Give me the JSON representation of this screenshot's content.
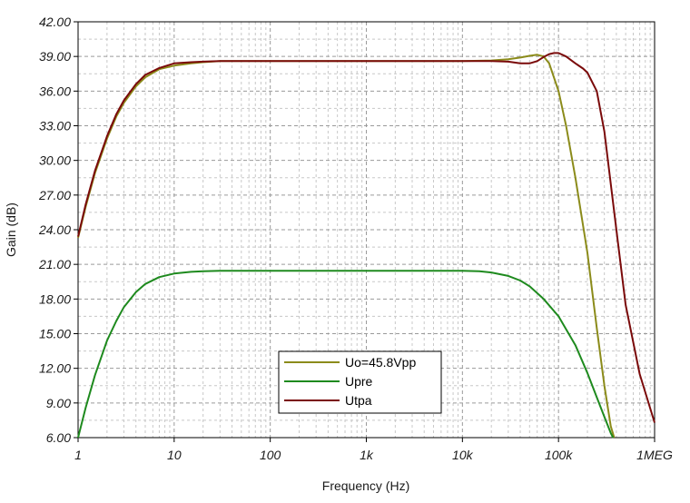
{
  "chart_data": {
    "type": "line",
    "xlabel": "Frequency (Hz)",
    "ylabel": "Gain (dB)",
    "x_scale": "log",
    "xlim": [
      1,
      1000000
    ],
    "ylim": [
      6,
      42
    ],
    "grid": true,
    "legend_position": "bottom-center",
    "x_ticks": [
      {
        "value": 1,
        "label": "1"
      },
      {
        "value": 10,
        "label": "10"
      },
      {
        "value": 100,
        "label": "100"
      },
      {
        "value": 1000,
        "label": "1k"
      },
      {
        "value": 10000,
        "label": "10k"
      },
      {
        "value": 100000,
        "label": "100k"
      },
      {
        "value": 1000000,
        "label": "1MEG"
      }
    ],
    "y_ticks": [
      {
        "value": 6,
        "label": "6.00"
      },
      {
        "value": 9,
        "label": "9.00"
      },
      {
        "value": 12,
        "label": "12.00"
      },
      {
        "value": 15,
        "label": "15.00"
      },
      {
        "value": 18,
        "label": "18.00"
      },
      {
        "value": 21,
        "label": "21.00"
      },
      {
        "value": 24,
        "label": "24.00"
      },
      {
        "value": 27,
        "label": "27.00"
      },
      {
        "value": 30,
        "label": "30.00"
      },
      {
        "value": 33,
        "label": "33.00"
      },
      {
        "value": 36,
        "label": "36.00"
      },
      {
        "value": 39,
        "label": "39.00"
      },
      {
        "value": 42,
        "label": "42.00"
      }
    ],
    "series": [
      {
        "name": "Uo=45.8Vpp",
        "color": "#8b8b1a",
        "x": [
          1,
          1.2,
          1.5,
          2,
          2.5,
          3,
          4,
          5,
          7,
          10,
          15,
          20,
          30,
          50,
          100,
          1000,
          10000,
          20000,
          30000,
          40000,
          50000,
          60000,
          70000,
          80000,
          100000,
          120000,
          150000,
          200000,
          250000,
          300000,
          350000,
          380000
        ],
        "y": [
          23.3,
          26.0,
          28.9,
          31.9,
          33.8,
          35.0,
          36.4,
          37.2,
          37.9,
          38.2,
          38.4,
          38.5,
          38.6,
          38.6,
          38.6,
          38.6,
          38.6,
          38.65,
          38.75,
          38.9,
          39.05,
          39.15,
          39.0,
          38.4,
          36.0,
          33.0,
          28.5,
          22.0,
          15.5,
          10.5,
          7.0,
          5.8
        ]
      },
      {
        "name": "Upre",
        "color": "#1e8a1e",
        "x": [
          1,
          1.2,
          1.5,
          2,
          2.5,
          3,
          4,
          5,
          7,
          10,
          15,
          20,
          30,
          50,
          100,
          1000,
          10000,
          15000,
          20000,
          30000,
          40000,
          50000,
          70000,
          100000,
          150000,
          200000,
          250000,
          300000,
          350000,
          370000
        ],
        "y": [
          6.0,
          8.6,
          11.4,
          14.4,
          16.1,
          17.3,
          18.6,
          19.3,
          19.9,
          20.2,
          20.35,
          20.4,
          20.45,
          20.45,
          20.45,
          20.45,
          20.45,
          20.4,
          20.3,
          20.0,
          19.6,
          19.1,
          18.0,
          16.5,
          14.0,
          11.6,
          9.5,
          7.8,
          6.4,
          5.9
        ]
      },
      {
        "name": "Utpa",
        "color": "#7a0a0a",
        "x": [
          1,
          1.2,
          1.5,
          2,
          2.5,
          3,
          4,
          5,
          7,
          10,
          15,
          20,
          30,
          50,
          100,
          1000,
          10000,
          20000,
          30000,
          40000,
          50000,
          60000,
          70000,
          80000,
          90000,
          100000,
          120000,
          150000,
          180000,
          200000,
          250000,
          300000,
          400000,
          500000,
          700000,
          1000000
        ],
        "y": [
          23.4,
          26.2,
          29.1,
          32.1,
          34.0,
          35.2,
          36.6,
          37.4,
          38.0,
          38.4,
          38.5,
          38.55,
          38.6,
          38.6,
          38.6,
          38.6,
          38.6,
          38.6,
          38.55,
          38.4,
          38.4,
          38.6,
          38.95,
          39.2,
          39.3,
          39.3,
          39.0,
          38.4,
          37.95,
          37.6,
          36.0,
          32.5,
          24.0,
          17.5,
          11.5,
          7.3
        ]
      }
    ]
  }
}
